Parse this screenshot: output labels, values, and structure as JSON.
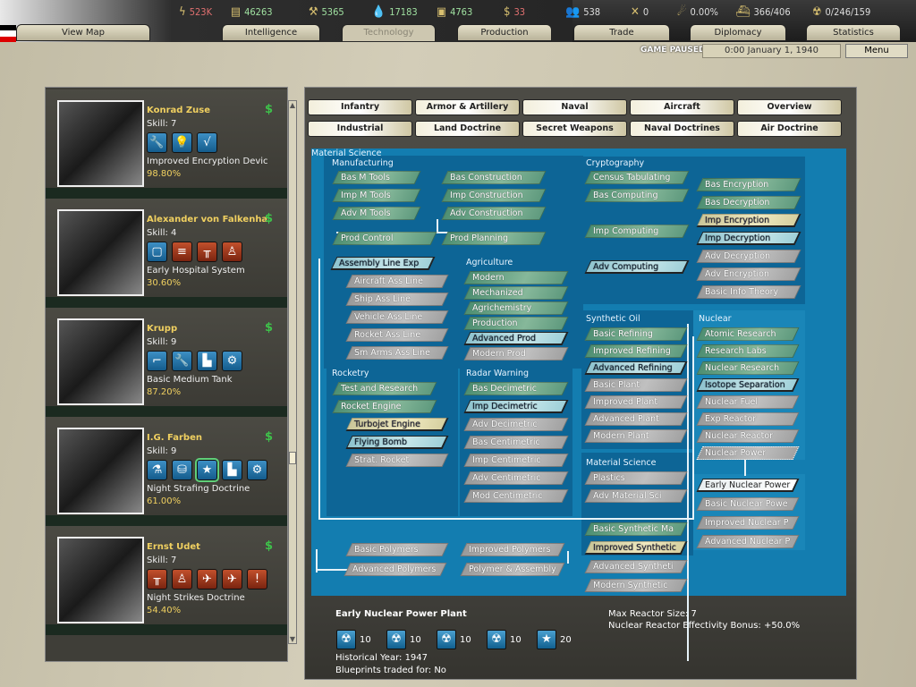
{
  "topbar": {
    "resources": [
      {
        "icon": "energy-icon",
        "value": "523K",
        "color": "#e07070"
      },
      {
        "icon": "metal-icon",
        "value": "46263",
        "color": "#9fe0a0"
      },
      {
        "icon": "rare-materials-icon",
        "value": "5365",
        "color": "#9fe0a0"
      },
      {
        "icon": "oil-icon",
        "value": "17183",
        "color": "#9fe0a0"
      },
      {
        "icon": "supplies-icon",
        "value": "4763",
        "color": "#9fe0a0"
      },
      {
        "icon": "money-icon",
        "value": "33",
        "color": "#e07070"
      },
      {
        "icon": "manpower-icon",
        "value": "538",
        "color": "#ddd"
      },
      {
        "icon": "transports-icon",
        "value": "0",
        "color": "#ddd"
      },
      {
        "icon": "dissent-icon",
        "value": "0.00%",
        "color": "#ddd"
      },
      {
        "icon": "convoys-icon",
        "value": "366/406",
        "color": "#ddd"
      },
      {
        "icon": "nukes-icon",
        "value": "0/246/159",
        "color": "#ddd"
      }
    ],
    "tabs": [
      "View Map",
      "Intelligence",
      "Technology",
      "Production",
      "Trade",
      "Diplomacy",
      "Statistics"
    ],
    "active_tab": "Technology",
    "status": "GAME PAUSED",
    "date": "0:00 January 1, 1940",
    "menu": "Menu",
    "flag_colors": [
      "#000000",
      "#ffffff",
      "#dd0000"
    ]
  },
  "research_teams": [
    {
      "name": "Konrad Zuse",
      "skill": "Skill: 7",
      "icons": [
        [
          "blue",
          "wrench-icon",
          "🔧"
        ],
        [
          "blue",
          "lightbulb-icon",
          "💡"
        ],
        [
          "blue",
          "math-icon",
          "√"
        ]
      ],
      "project": "Improved Encryption Devic",
      "progress": "98.80%"
    },
    {
      "name": "Alexander von Falkenha",
      "skill": "Skill: 4",
      "icons": [
        [
          "blue",
          "doctrine-icon",
          "▢"
        ],
        [
          "red",
          "infantry-icon",
          "≡"
        ],
        [
          "red",
          "command-icon",
          "╥"
        ],
        [
          "red",
          "soldier-icon",
          "♙"
        ]
      ],
      "project": "Early Hospital System",
      "progress": "30.60%"
    },
    {
      "name": "Krupp",
      "skill": "Skill: 9",
      "icons": [
        [
          "blue",
          "artillery-icon",
          "⌐"
        ],
        [
          "blue",
          "wrench-icon",
          "🔧"
        ],
        [
          "blue",
          "factory-icon",
          "▙"
        ],
        [
          "blue",
          "gears-icon",
          "⚙"
        ]
      ],
      "project": "Basic Medium Tank",
      "progress": "87.20%"
    },
    {
      "name": "I.G. Farben",
      "skill": "Skill: 9",
      "icons": [
        [
          "blue",
          "chemistry-icon",
          "⚗"
        ],
        [
          "blue",
          "materials-icon",
          "⛁"
        ],
        [
          "blue",
          "star-icon",
          "★"
        ],
        [
          "blue",
          "factory-icon",
          "▙"
        ],
        [
          "blue",
          "gears-icon",
          "⚙"
        ]
      ],
      "project": "Night Strafing Doctrine",
      "progress": "61.00%",
      "selected_icon": 2
    },
    {
      "name": "Ernst Udet",
      "skill": "Skill: 7",
      "icons": [
        [
          "red",
          "command-icon",
          "╥"
        ],
        [
          "red",
          "infantry-icon",
          "♙"
        ],
        [
          "red",
          "aircraft-icon",
          "✈"
        ],
        [
          "red",
          "fighter-icon",
          "✈"
        ],
        [
          "red",
          "rocket-icon",
          "!"
        ]
      ],
      "project": "Night Strikes Doctrine",
      "progress": "54.40%"
    }
  ],
  "categories": [
    "Infantry",
    "Armor & Artillery",
    "Naval",
    "Aircraft",
    "Overview",
    "Industrial",
    "Land Doctrine",
    "Secret Weapons",
    "Naval Doctrines",
    "Air Doctrine"
  ],
  "status_colors": {
    "researched": "#6fa88a",
    "unavailable": "#aaaaaa",
    "available": "#b0dce2",
    "researching": "#e2dcae",
    "selected": "#f4f6f6"
  },
  "tree": {
    "groups": [
      {
        "label": "Manufacturing",
        "nodes": [
          {
            "name": "Bas M Tools",
            "status": "researched"
          },
          {
            "name": "Imp M Tools",
            "status": "researched"
          },
          {
            "name": "Adv M Tools",
            "status": "researched"
          },
          {
            "name": "Bas Construction",
            "status": "researched"
          },
          {
            "name": "Imp Construction",
            "status": "researched"
          },
          {
            "name": "Adv Construction",
            "status": "researched"
          },
          {
            "name": "Prod Control",
            "status": "researched"
          },
          {
            "name": "Prod Planning",
            "status": "researched"
          },
          {
            "name": "Assembly Line Exp",
            "status": "available"
          },
          {
            "name": "Aircraft Ass Line",
            "status": "unavailable"
          },
          {
            "name": "Ship Ass Line",
            "status": "unavailable"
          },
          {
            "name": "Vehicle Ass Line",
            "status": "unavailable"
          },
          {
            "name": "Rocket Ass Line",
            "status": "unavailable"
          },
          {
            "name": "Sm Arms Ass Line",
            "status": "unavailable"
          }
        ]
      },
      {
        "label": "Agriculture",
        "nodes": [
          {
            "name": "Modern",
            "status": "researched"
          },
          {
            "name": "Mechanized",
            "status": "researched"
          },
          {
            "name": "Agrichemistry",
            "status": "researched"
          },
          {
            "name": "Production",
            "status": "researched"
          },
          {
            "name": "Advanced Prod",
            "status": "available"
          },
          {
            "name": "Modern Prod",
            "status": "unavailable"
          }
        ]
      },
      {
        "label": "Rocketry",
        "nodes": [
          {
            "name": "Test and Research",
            "status": "researched"
          },
          {
            "name": "Rocket Engine",
            "status": "researched"
          },
          {
            "name": "Turbojet Engine",
            "status": "researching"
          },
          {
            "name": "Flying Bomb",
            "status": "available"
          },
          {
            "name": "Strat. Rocket",
            "status": "unavailable"
          }
        ]
      },
      {
        "label": "Radar Warning",
        "nodes": [
          {
            "name": "Bas Decimetric",
            "status": "researched"
          },
          {
            "name": "Imp Decimetric",
            "status": "available"
          },
          {
            "name": "Adv Decimetric",
            "status": "unavailable"
          },
          {
            "name": "Bas Centimetric",
            "status": "unavailable"
          },
          {
            "name": "Imp Centimetric",
            "status": "unavailable"
          },
          {
            "name": "Adv Centimetric",
            "status": "unavailable"
          },
          {
            "name": "Mod Centimetric",
            "status": "unavailable"
          }
        ]
      },
      {
        "label": "",
        "nodes": [
          {
            "name": "Basic Polymers",
            "status": "unavailable"
          },
          {
            "name": "Improved Polymers",
            "status": "unavailable"
          },
          {
            "name": "Advanced Polymers",
            "status": "unavailable"
          },
          {
            "name": "Polymer & Assembly",
            "status": "unavailable"
          }
        ]
      },
      {
        "label": "Cryptography",
        "nodes": [
          {
            "name": "Census Tabulating",
            "status": "researched"
          },
          {
            "name": "Bas Computing",
            "status": "researched"
          },
          {
            "name": "Imp Computing",
            "status": "researched"
          },
          {
            "name": "Adv Computing",
            "status": "available"
          },
          {
            "name": "Bas Encryption",
            "status": "researched"
          },
          {
            "name": "Bas Decryption",
            "status": "researched"
          },
          {
            "name": "Imp Encryption",
            "status": "researching"
          },
          {
            "name": "Imp Decryption",
            "status": "available"
          },
          {
            "name": "Adv Decryption",
            "status": "unavailable"
          },
          {
            "name": "Adv Encryption",
            "status": "unavailable"
          },
          {
            "name": "Basic Info Theory",
            "status": "unavailable"
          }
        ]
      },
      {
        "label": "Synthetic Oil",
        "nodes": [
          {
            "name": "Basic Refining",
            "status": "researched"
          },
          {
            "name": "Improved Refining",
            "status": "researched"
          },
          {
            "name": "Advanced Refining",
            "status": "available"
          },
          {
            "name": "Basic Plant",
            "status": "unavailable"
          },
          {
            "name": "Improved Plant",
            "status": "unavailable"
          },
          {
            "name": "Advanced Plant",
            "status": "unavailable"
          },
          {
            "name": "Modern Plant",
            "status": "unavailable"
          }
        ]
      },
      {
        "label": "Material Science",
        "nodes": [
          {
            "name": "Plastics",
            "status": "unavailable"
          },
          {
            "name": "Adv Material Sci",
            "status": "unavailable"
          },
          {
            "name": "Basic Synthetic Ma",
            "status": "researched"
          },
          {
            "name": "Improved Synthetic",
            "status": "researching"
          },
          {
            "name": "Advanced Syntheti",
            "status": "unavailable"
          },
          {
            "name": "Modern Synthetic",
            "status": "unavailable"
          }
        ]
      },
      {
        "label": "Nuclear",
        "nodes": [
          {
            "name": "Atomic Research",
            "status": "researched"
          },
          {
            "name": "Research Labs",
            "status": "researched"
          },
          {
            "name": "Nuclear Research",
            "status": "researched"
          },
          {
            "name": "Isotope Separation",
            "status": "available"
          },
          {
            "name": "Nuclear Fuel",
            "status": "unavailable"
          },
          {
            "name": "Exp Reactor",
            "status": "unavailable"
          },
          {
            "name": "Nuclear Reactor",
            "status": "unavailable"
          },
          {
            "name": "Nuclear Power",
            "status": "unavailable"
          },
          {
            "name": "Early Nuclear Power",
            "status": "selected"
          },
          {
            "name": "Basic Nuclear Powe",
            "status": "unavailable"
          },
          {
            "name": "Improved Nuclear P",
            "status": "unavailable"
          },
          {
            "name": "Advanced Nuclear P",
            "status": "unavailable"
          }
        ]
      }
    ]
  },
  "details": {
    "title": "Early Nuclear Power Plant",
    "components": [
      {
        "icon": "nuclear-icon",
        "value": "10"
      },
      {
        "icon": "nuclear-icon",
        "value": "10"
      },
      {
        "icon": "nuclear-icon",
        "value": "10"
      },
      {
        "icon": "nuclear-icon",
        "value": "10"
      },
      {
        "icon": "star-icon",
        "value": "20"
      }
    ],
    "historical_year": "Historical Year: 1947",
    "blueprints": "Blueprints traded for: No",
    "effect1": "Max Reactor Size: 7",
    "effect2": "Nuclear Reactor Effectivity Bonus: +50.0%"
  }
}
